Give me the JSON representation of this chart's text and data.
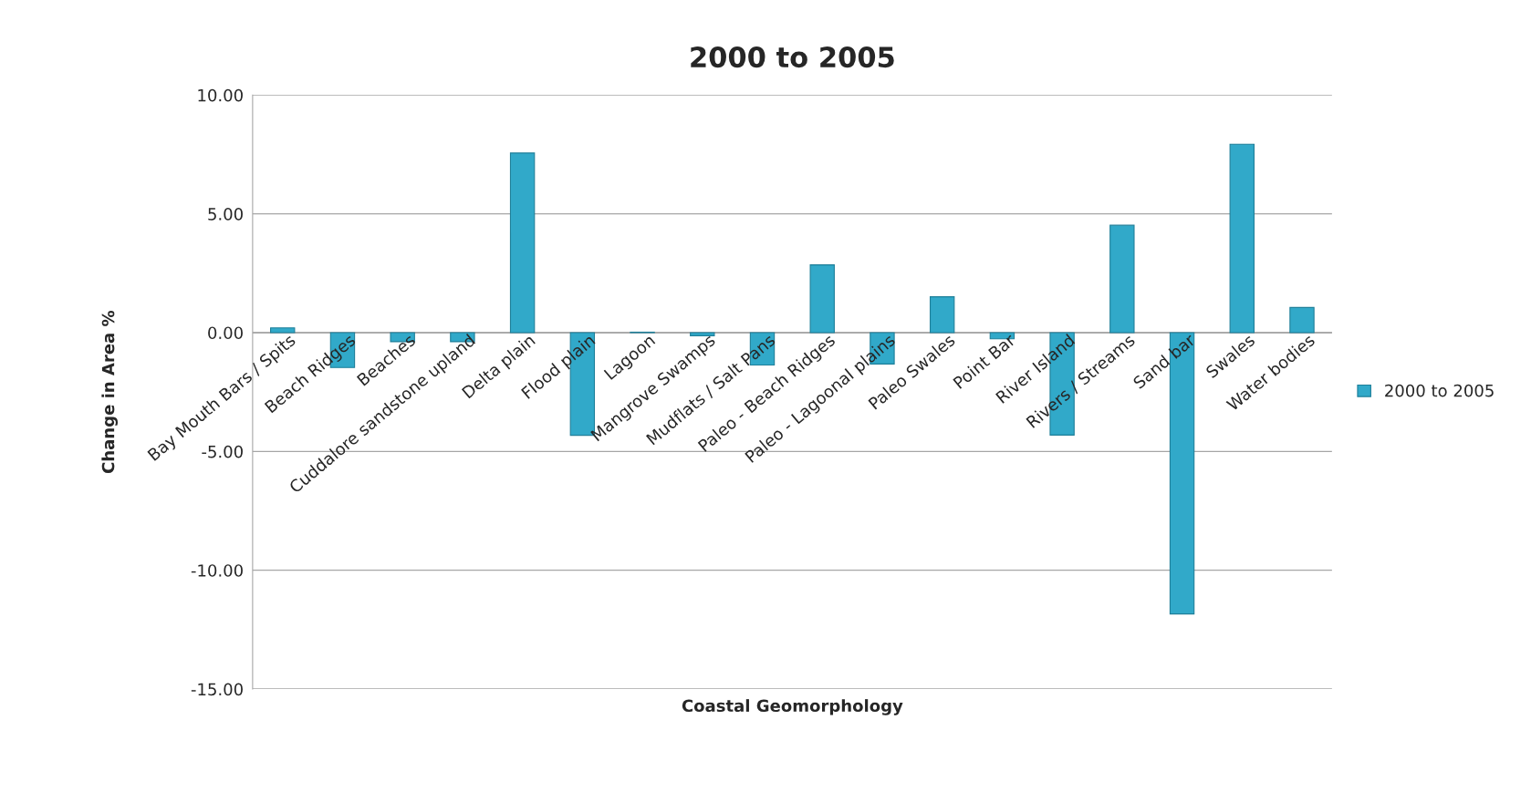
{
  "chart_data": {
    "type": "bar",
    "title": "2000 to 2005",
    "xlabel": "Coastal Geomorphology",
    "ylabel": "Change in Area %",
    "categories": [
      "Bay Mouth Bars / Spits",
      "Beach Ridges",
      "Beaches",
      "Cuddalore sandstone upland",
      "Delta plain",
      "Flood plain",
      "Lagoon",
      "Mangrove Swamps",
      "Mudflats / Salt Pans",
      "Paleo - Beach Ridges",
      "Paleo - Lagoonal plains",
      "Paleo Swales",
      "Point Bar",
      "River Island",
      "Rivers / Streams",
      "Sand bar",
      "Swales",
      "Water bodies"
    ],
    "series": [
      {
        "name": "2000 to 2005",
        "color": "#31a9c9",
        "values": [
          0.2,
          -1.47,
          -0.38,
          -0.38,
          7.56,
          -4.32,
          0.02,
          -0.13,
          -1.36,
          2.85,
          -1.32,
          1.51,
          -0.26,
          -4.31,
          4.52,
          -11.84,
          7.93,
          1.06
        ]
      }
    ],
    "ylim": [
      -15,
      10
    ],
    "yticks": [
      {
        "value": -15,
        "label": "-15.00"
      },
      {
        "value": -10,
        "label": "-10.00"
      },
      {
        "value": -5,
        "label": "-5.00"
      },
      {
        "value": 0,
        "label": "0.00"
      },
      {
        "value": 5,
        "label": "5.00"
      },
      {
        "value": 10,
        "label": "10.00"
      }
    ],
    "grid": "y",
    "legend": "right"
  }
}
